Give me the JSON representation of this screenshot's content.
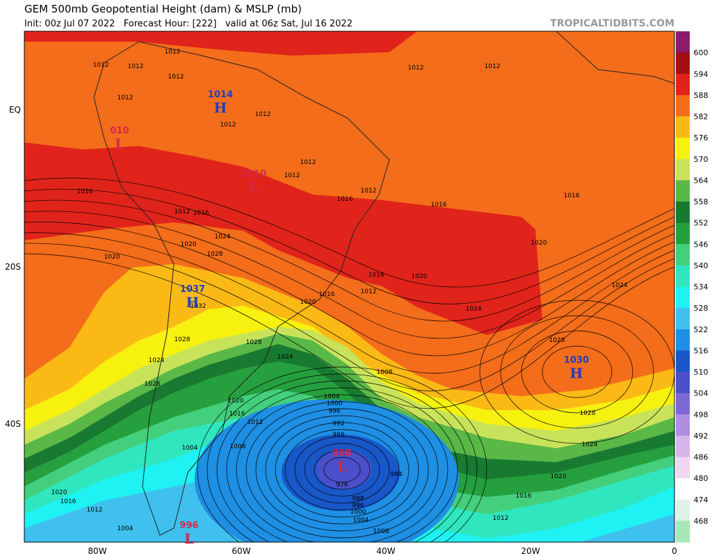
{
  "header": {
    "title": "GEM 500mb Geopotential Height (dam) & MSLP (mb)",
    "subtitle": "Init: 00z Jul 07 2022   Forecast Hour: [222]   valid at 06z Sat, Jul 16 2022",
    "source": "TROPICALTIDBITS.COM"
  },
  "axes": {
    "x_labels": [
      "80W",
      "60W",
      "40W",
      "20W",
      "0"
    ],
    "y_labels": [
      "EQ",
      "20S",
      "40S"
    ]
  },
  "colorbar": {
    "labels": [
      600,
      594,
      588,
      582,
      576,
      570,
      564,
      558,
      552,
      546,
      540,
      534,
      528,
      522,
      516,
      510,
      504,
      498,
      492,
      486,
      480,
      474,
      468
    ],
    "colors": [
      "#8c1b6c",
      "#a10f13",
      "#e0241b",
      "#f36d1a",
      "#fbb915",
      "#f6f10e",
      "#c8e35a",
      "#5ab847",
      "#187a31",
      "#26a03e",
      "#43cf7c",
      "#30e6bf",
      "#1ef2f2",
      "#3fc0ef",
      "#1e8fe3",
      "#1857c8",
      "#4b4fc9",
      "#7d69d6",
      "#ae8fe0",
      "#d6b5ea",
      "#f0d7f1",
      "#ffffff",
      "#dff2e6",
      "#a6e7b7"
    ]
  },
  "centers": [
    {
      "type": "H",
      "value": "1014"
    },
    {
      "type": "L",
      "value": "010"
    },
    {
      "type": "L",
      "value": "1010"
    },
    {
      "type": "H",
      "value": "1037"
    },
    {
      "type": "H",
      "value": "1030"
    },
    {
      "type": "L",
      "value": "958"
    },
    {
      "type": "L",
      "value": "996"
    }
  ],
  "isobar_labels": [
    1012,
    1012,
    1012,
    1012,
    1012,
    1012,
    1012,
    1012,
    1012,
    1012,
    1012,
    1012,
    1012,
    1012,
    1012,
    1012,
    1012,
    1016,
    1016,
    1016,
    1016,
    1016,
    1016,
    1016,
    1016,
    1016,
    1016,
    1020,
    1020,
    1020,
    1020,
    1020,
    1020,
    1020,
    1020,
    1024,
    1024,
    1024,
    1024,
    1024,
    1024,
    1028,
    1028,
    1028,
    1028,
    1028,
    1028,
    1032,
    1008,
    1008,
    1008,
    1004,
    1004,
    1004,
    1004,
    1000,
    1000,
    996,
    996,
    992,
    988,
    988,
    984,
    976
  ]
}
